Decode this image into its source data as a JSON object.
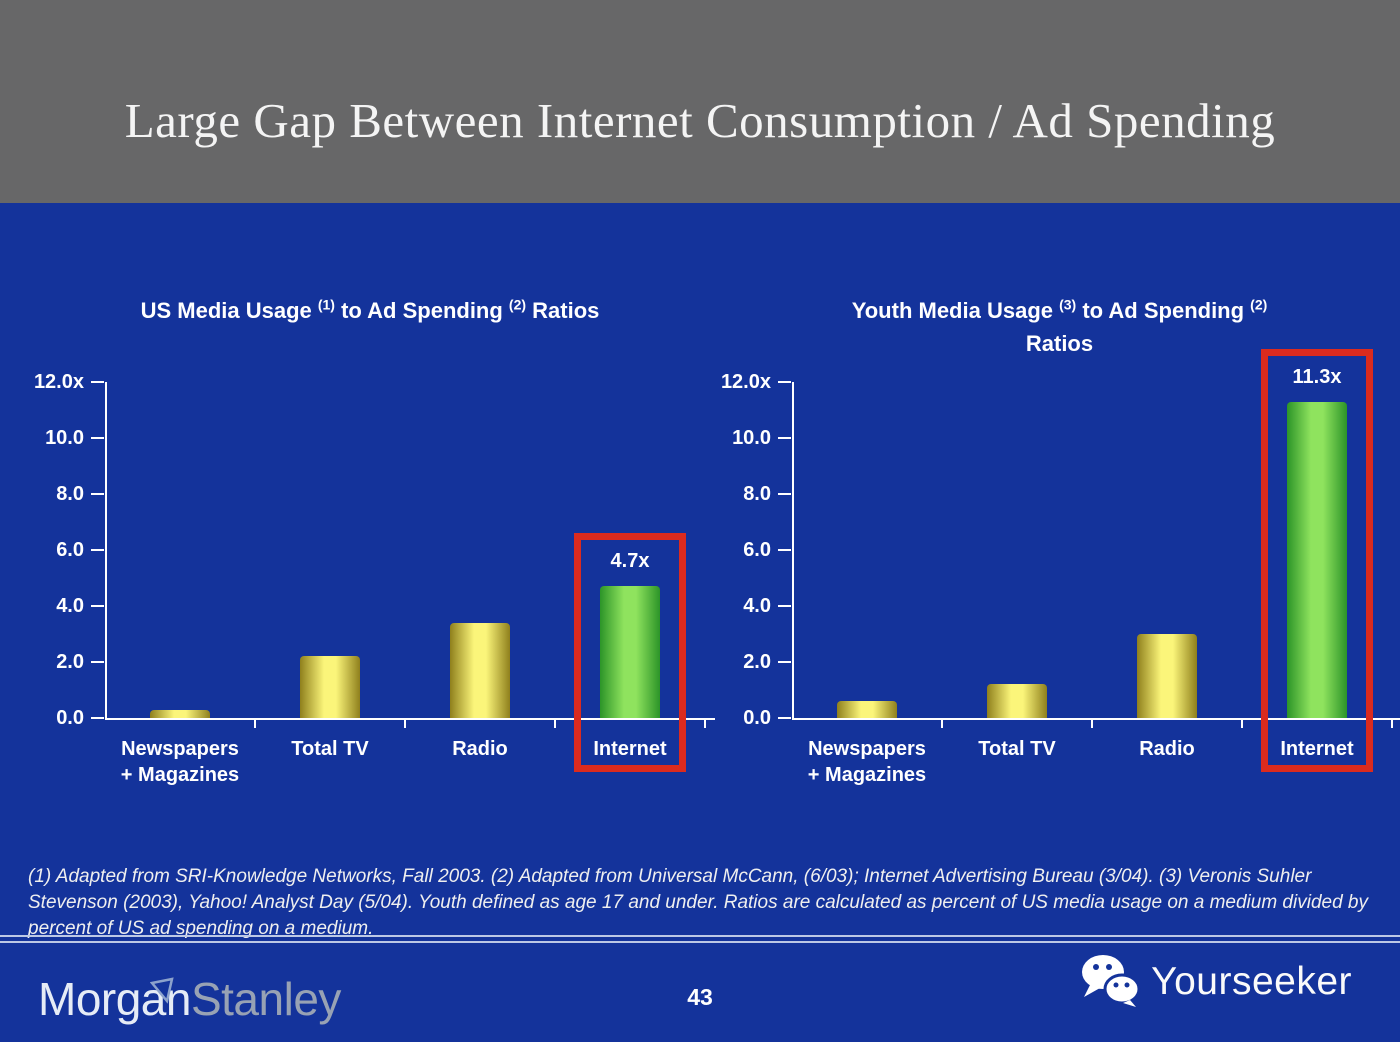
{
  "slide": {
    "header_title": "Large Gap Between Internet Consumption / Ad Spending",
    "page_number": "43",
    "footnote": "(1) Adapted from SRI-Knowledge Networks, Fall 2003.  (2) Adapted from Universal McCann, (6/03); Internet Advertising Bureau (3/04). (3) Veronis Suhler Stevenson (2003), Yahoo! Analyst Day (5/04).  Youth defined as age 17 and under.  Ratios are calculated as percent of US media usage on a medium divided by percent of US ad spending on a medium."
  },
  "branding": {
    "morgan": "Morgan",
    "stanley": "Stanley",
    "watermark_text": "Yourseeker",
    "watermark_icon": "wechat-icon",
    "flag_icon": "morgan-stanley-flag-icon"
  },
  "colors": {
    "slide_background": "#14339B",
    "header_background": "#676768",
    "axis": "#FFFFFF",
    "bar_yellow": [
      "#8F801C",
      "#FBF57A"
    ],
    "bar_green": [
      "#2C9428",
      "#8FE35E"
    ],
    "highlight_red": "#DB2B1E"
  },
  "chart_data": [
    {
      "type": "bar",
      "title": "US Media Usage (1) to Ad Spending (2) Ratios",
      "title_rich": [
        {
          "text": "US Media Usage "
        },
        {
          "sup": "(1)"
        },
        {
          "text": " to Ad Spending "
        },
        {
          "sup": "(2)"
        },
        {
          "text": " Ratios"
        }
      ],
      "categories": [
        "Newspapers\n+ Magazines",
        "Total TV",
        "Radio",
        "Internet"
      ],
      "values": [
        0.3,
        2.2,
        3.4,
        4.7
      ],
      "bar_styles": [
        "yellow",
        "yellow",
        "yellow",
        "green"
      ],
      "y_tick_labels": [
        "12.0x",
        "10.0",
        "8.0",
        "6.0",
        "4.0",
        "2.0",
        "0.0"
      ],
      "ylim": [
        0,
        12
      ],
      "xlabel": "",
      "ylabel": "",
      "grid": false,
      "legend": null,
      "data_labels": {
        "3": "4.7x"
      },
      "highlight_index": 3
    },
    {
      "type": "bar",
      "title": "Youth Media Usage (3) to Ad Spending (2) Ratios",
      "title_rich": [
        {
          "text": "Youth Media Usage "
        },
        {
          "sup": "(3)"
        },
        {
          "text": " to Ad Spending "
        },
        {
          "sup": "(2)"
        },
        {
          "br": true
        },
        {
          "text": "Ratios"
        }
      ],
      "categories": [
        "Newspapers\n+ Magazines",
        "Total TV",
        "Radio",
        "Internet"
      ],
      "values": [
        0.6,
        1.2,
        3.0,
        11.3
      ],
      "bar_styles": [
        "yellow",
        "yellow",
        "yellow",
        "green"
      ],
      "y_tick_labels": [
        "12.0x",
        "10.0",
        "8.0",
        "6.0",
        "4.0",
        "2.0",
        "0.0"
      ],
      "ylim": [
        0,
        12
      ],
      "xlabel": "",
      "ylabel": "",
      "grid": false,
      "legend": null,
      "data_labels": {
        "3": "11.3x"
      },
      "highlight_index": 3
    }
  ]
}
